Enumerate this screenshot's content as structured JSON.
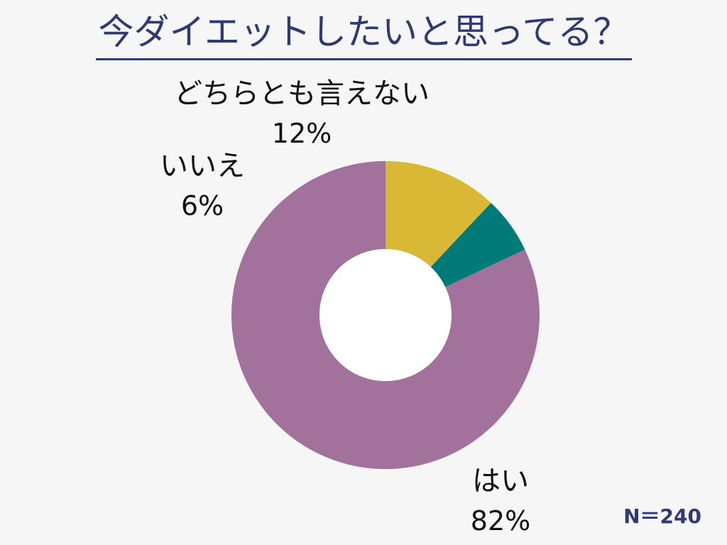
{
  "title": "今ダイエットしたいと思ってる？",
  "sample_note": "N＝240",
  "chart_data": {
    "type": "pie",
    "donut": true,
    "title": "今ダイエットしたいと思ってる？",
    "categories": [
      "はい",
      "いいえ",
      "どちらとも言えない"
    ],
    "values": [
      82,
      6,
      12
    ],
    "labels": [
      "82%",
      "6%",
      "12%"
    ],
    "colors": [
      "#a2719c",
      "#007a78",
      "#d9b836"
    ],
    "legend": "none",
    "start_angle_deg": 0,
    "direction": "counterclockwise"
  }
}
